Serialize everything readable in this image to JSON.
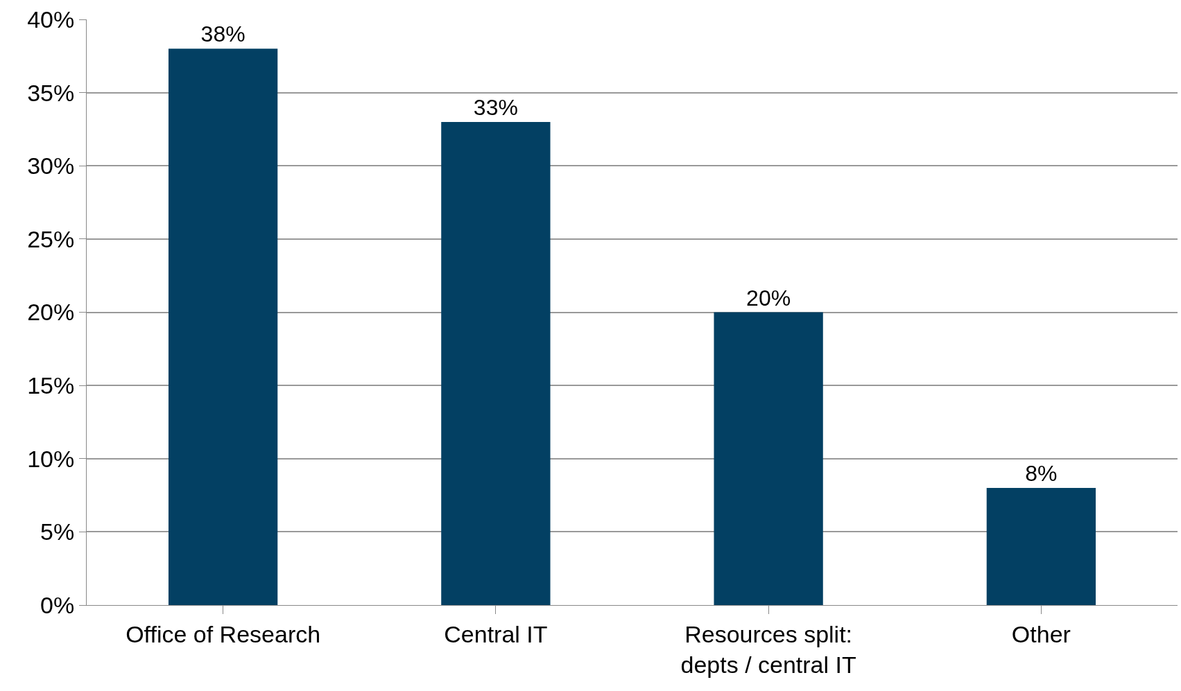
{
  "chart_data": {
    "type": "bar",
    "categories": [
      "Office of Research",
      "Central IT",
      "Resources split: depts / central IT",
      "Other"
    ],
    "values": [
      38,
      33,
      20,
      8
    ],
    "value_labels": [
      "38%",
      "33%",
      "20%",
      "8%"
    ],
    "color": "#034063",
    "ylim": [
      0,
      40
    ],
    "yticks": [
      {
        "value": 0,
        "label": "0%"
      },
      {
        "value": 5,
        "label": "5%"
      },
      {
        "value": 10,
        "label": "10%"
      },
      {
        "value": 15,
        "label": "15%"
      },
      {
        "value": 20,
        "label": "20%"
      },
      {
        "value": 25,
        "label": "25%"
      },
      {
        "value": 30,
        "label": "30%"
      },
      {
        "value": 35,
        "label": "35%"
      },
      {
        "value": 40,
        "label": "40%"
      }
    ],
    "grid": "y",
    "legend": false
  }
}
